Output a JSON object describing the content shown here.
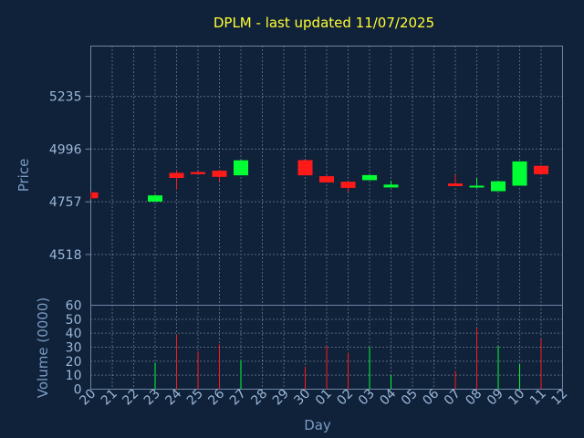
{
  "chart_data": {
    "type": "candlestick",
    "title": "DPLM - last updated 11/07/2025",
    "xlabel": "Day",
    "price_axis": {
      "label": "Price",
      "ticks": [
        4518,
        4757,
        4996,
        5235
      ],
      "range": [
        4288,
        5463
      ]
    },
    "volume_axis": {
      "label": "Volume (0000)",
      "ticks": [
        0,
        10,
        20,
        30,
        40,
        50,
        60
      ],
      "range": [
        0,
        60
      ]
    },
    "grid": true,
    "categories": [
      "20",
      "21",
      "22",
      "23",
      "24",
      "25",
      "26",
      "27",
      "28",
      "29",
      "30",
      "01",
      "02",
      "03",
      "04",
      "05",
      "06",
      "07",
      "08",
      "09",
      "10",
      "11",
      "12"
    ],
    "candles": [
      {
        "day": "20",
        "open": 4800,
        "high": 4800,
        "low": 4770,
        "close": 4773
      },
      {
        "day": "23",
        "open": 4758,
        "high": 4790,
        "low": 4758,
        "close": 4786
      },
      {
        "day": "24",
        "open": 4888,
        "high": 4900,
        "low": 4812,
        "close": 4865
      },
      {
        "day": "25",
        "open": 4892,
        "high": 4895,
        "low": 4882,
        "close": 4882
      },
      {
        "day": "26",
        "open": 4898,
        "high": 4902,
        "low": 4850,
        "close": 4870
      },
      {
        "day": "27",
        "open": 4877,
        "high": 4945,
        "low": 4877,
        "close": 4945
      },
      {
        "day": "30",
        "open": 4946,
        "high": 4946,
        "low": 4877,
        "close": 4877
      },
      {
        "day": "01",
        "open": 4873,
        "high": 4878,
        "low": 4845,
        "close": 4845
      },
      {
        "day": "02",
        "open": 4848,
        "high": 4848,
        "low": 4803,
        "close": 4820
      },
      {
        "day": "03",
        "open": 4855,
        "high": 4878,
        "low": 4855,
        "close": 4878
      },
      {
        "day": "04",
        "open": 4822,
        "high": 4853,
        "low": 4822,
        "close": 4835
      },
      {
        "day": "07",
        "open": 4840,
        "high": 4880,
        "low": 4828,
        "close": 4828
      },
      {
        "day": "08",
        "open": 4830,
        "high": 4865,
        "low": 4820,
        "close": 4830
      },
      {
        "day": "09",
        "open": 4805,
        "high": 4852,
        "low": 4805,
        "close": 4850
      },
      {
        "day": "10",
        "open": 4830,
        "high": 4940,
        "low": 4830,
        "close": 4940
      },
      {
        "day": "11",
        "open": 4920,
        "high": 4922,
        "low": 4880,
        "close": 4882
      }
    ],
    "volumes": [
      {
        "day": "23",
        "value": 19,
        "direction": "up"
      },
      {
        "day": "24",
        "value": 39,
        "direction": "down"
      },
      {
        "day": "25",
        "value": 27,
        "direction": "down"
      },
      {
        "day": "26",
        "value": 32,
        "direction": "down"
      },
      {
        "day": "27",
        "value": 21,
        "direction": "up"
      },
      {
        "day": "30",
        "value": 16,
        "direction": "down"
      },
      {
        "day": "01",
        "value": 31,
        "direction": "down"
      },
      {
        "day": "02",
        "value": 26,
        "direction": "down"
      },
      {
        "day": "03",
        "value": 30,
        "direction": "up"
      },
      {
        "day": "04",
        "value": 10,
        "direction": "up"
      },
      {
        "day": "07",
        "value": 13,
        "direction": "down"
      },
      {
        "day": "08",
        "value": 44,
        "direction": "down"
      },
      {
        "day": "09",
        "value": 31,
        "direction": "up"
      },
      {
        "day": "10",
        "value": 18,
        "direction": "up"
      },
      {
        "day": "11",
        "value": 36,
        "direction": "down"
      }
    ],
    "colors": {
      "up": "#00ff33",
      "down": "#ff1a1a",
      "background": "#10213a",
      "text": "#9ab8d8",
      "title": "#ffff33"
    }
  }
}
